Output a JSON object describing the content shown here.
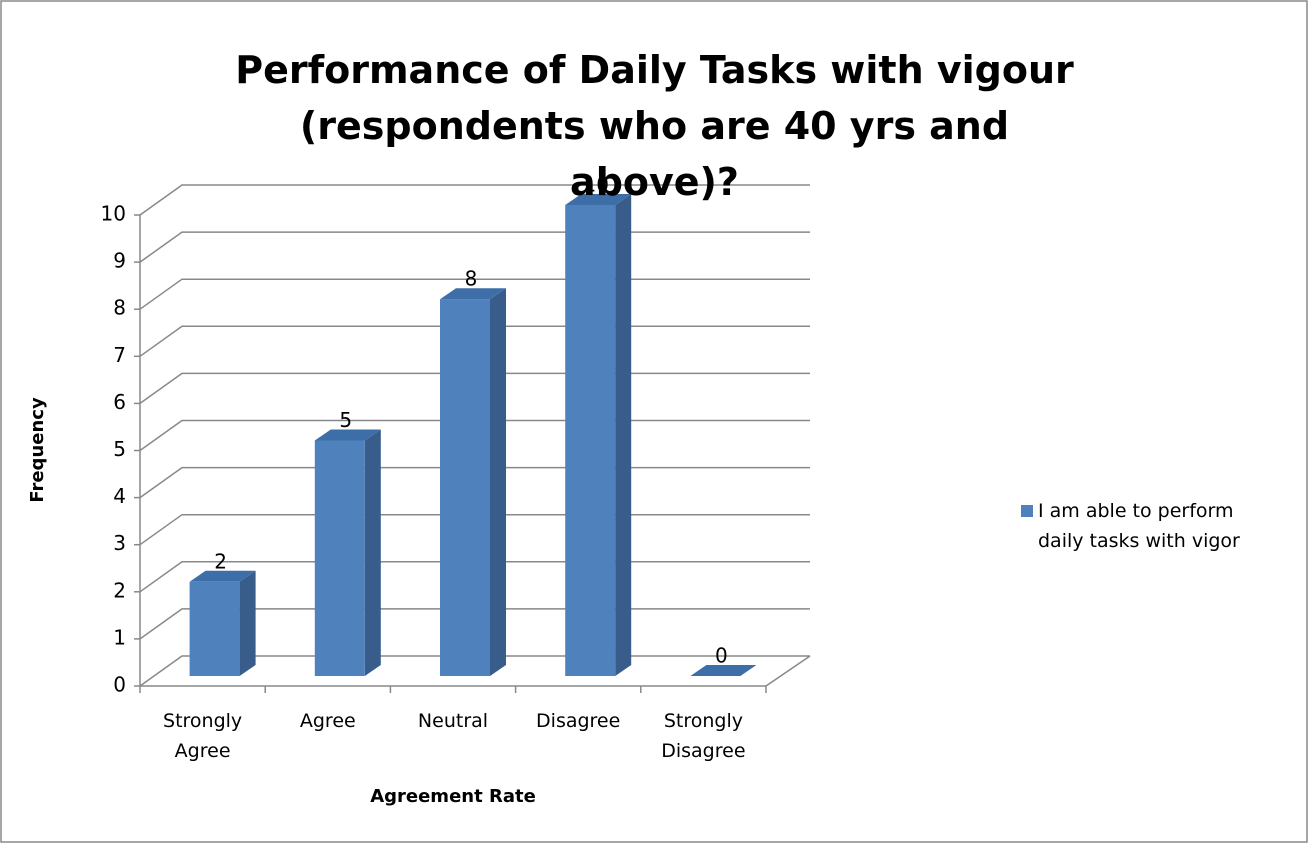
{
  "chart_data": {
    "type": "bar3d",
    "title": "Performance of Daily Tasks with vigour (respondents who are 40 yrs and above)?",
    "x_label": "Agreement Rate",
    "y_label": "Frequency",
    "categories": [
      "Strongly Agree",
      "Agree",
      "Neutral",
      "Disagree",
      "Strongly Disagree"
    ],
    "series": [
      {
        "name": "I am able to perform daily tasks with vigor",
        "color": "#4f81bd",
        "values": [
          2,
          5,
          8,
          10,
          0
        ]
      }
    ],
    "ylim": [
      0,
      10
    ],
    "yticks": [
      0,
      1,
      2,
      3,
      4,
      5,
      6,
      7,
      8,
      9,
      10
    ],
    "grid": true,
    "legend": "right"
  }
}
